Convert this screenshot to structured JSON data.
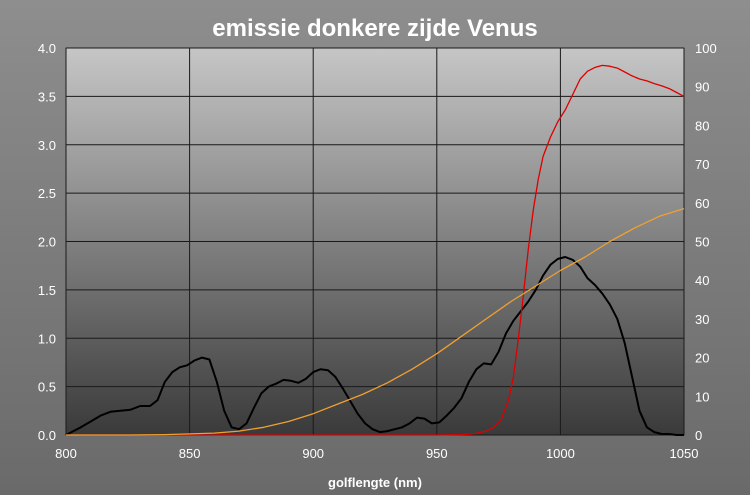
{
  "chart_data": {
    "type": "line",
    "title": "emissie donkere zijde Venus",
    "xlabel": "golflengte (nm)",
    "ylabel": "",
    "ylabel_right": "",
    "xlim": [
      800,
      1050
    ],
    "ylim": [
      0,
      4.0
    ],
    "ylim_right": [
      0,
      100
    ],
    "x_ticks": [
      "800",
      "850",
      "900",
      "950",
      "1000",
      "1050"
    ],
    "y_ticks": [
      "0.0",
      "0.5",
      "1.0",
      "1.5",
      "2.0",
      "2.5",
      "3.0",
      "3.5",
      "4.0"
    ],
    "y_ticks_right": [
      "0",
      "10",
      "20",
      "30",
      "40",
      "50",
      "60",
      "70",
      "80",
      "90",
      "100"
    ],
    "grid": true,
    "legend": "none",
    "colors": {
      "black": "#000000",
      "red": "#dd0000",
      "orange": "#f0a030"
    },
    "series": [
      {
        "axis": "left",
        "color": "#000000",
        "points": [
          [
            800,
            0.0
          ],
          [
            803,
            0.04
          ],
          [
            806,
            0.08
          ],
          [
            810,
            0.14
          ],
          [
            814,
            0.2
          ],
          [
            818,
            0.24
          ],
          [
            822,
            0.25
          ],
          [
            826,
            0.26
          ],
          [
            830,
            0.3
          ],
          [
            834,
            0.3
          ],
          [
            837,
            0.36
          ],
          [
            840,
            0.55
          ],
          [
            843,
            0.65
          ],
          [
            846,
            0.7
          ],
          [
            849,
            0.72
          ],
          [
            852,
            0.77
          ],
          [
            855,
            0.8
          ],
          [
            858,
            0.78
          ],
          [
            861,
            0.55
          ],
          [
            864,
            0.25
          ],
          [
            867,
            0.08
          ],
          [
            870,
            0.06
          ],
          [
            873,
            0.12
          ],
          [
            876,
            0.28
          ],
          [
            879,
            0.43
          ],
          [
            882,
            0.5
          ],
          [
            885,
            0.53
          ],
          [
            888,
            0.57
          ],
          [
            891,
            0.56
          ],
          [
            894,
            0.54
          ],
          [
            897,
            0.58
          ],
          [
            900,
            0.65
          ],
          [
            903,
            0.68
          ],
          [
            906,
            0.67
          ],
          [
            909,
            0.6
          ],
          [
            912,
            0.48
          ],
          [
            915,
            0.35
          ],
          [
            918,
            0.22
          ],
          [
            921,
            0.12
          ],
          [
            924,
            0.06
          ],
          [
            927,
            0.03
          ],
          [
            930,
            0.04
          ],
          [
            933,
            0.06
          ],
          [
            936,
            0.08
          ],
          [
            939,
            0.12
          ],
          [
            942,
            0.18
          ],
          [
            945,
            0.17
          ],
          [
            948,
            0.12
          ],
          [
            951,
            0.13
          ],
          [
            954,
            0.2
          ],
          [
            957,
            0.28
          ],
          [
            960,
            0.38
          ],
          [
            963,
            0.55
          ],
          [
            966,
            0.68
          ],
          [
            969,
            0.74
          ],
          [
            972,
            0.73
          ],
          [
            975,
            0.86
          ],
          [
            978,
            1.05
          ],
          [
            981,
            1.18
          ],
          [
            984,
            1.28
          ],
          [
            987,
            1.38
          ],
          [
            990,
            1.5
          ],
          [
            993,
            1.65
          ],
          [
            996,
            1.76
          ],
          [
            999,
            1.82
          ],
          [
            1002,
            1.84
          ],
          [
            1005,
            1.81
          ],
          [
            1008,
            1.74
          ],
          [
            1011,
            1.62
          ],
          [
            1014,
            1.55
          ],
          [
            1017,
            1.46
          ],
          [
            1020,
            1.35
          ],
          [
            1023,
            1.2
          ],
          [
            1026,
            0.95
          ],
          [
            1029,
            0.6
          ],
          [
            1032,
            0.25
          ],
          [
            1035,
            0.08
          ],
          [
            1038,
            0.03
          ],
          [
            1041,
            0.01
          ],
          [
            1044,
            0.01
          ],
          [
            1047,
            0.0
          ],
          [
            1050,
            0.0
          ]
        ]
      },
      {
        "axis": "right",
        "color": "#dd0000",
        "points": [
          [
            800,
            0
          ],
          [
            950,
            0
          ],
          [
            960,
            0.1
          ],
          [
            965,
            0.3
          ],
          [
            970,
            1
          ],
          [
            973,
            2
          ],
          [
            976,
            4
          ],
          [
            979,
            9
          ],
          [
            981,
            15
          ],
          [
            983,
            25
          ],
          [
            985,
            36
          ],
          [
            987,
            48
          ],
          [
            989,
            58
          ],
          [
            991,
            66
          ],
          [
            993,
            72
          ],
          [
            996,
            77
          ],
          [
            999,
            81
          ],
          [
            1002,
            84
          ],
          [
            1005,
            88
          ],
          [
            1008,
            92
          ],
          [
            1011,
            94
          ],
          [
            1014,
            95
          ],
          [
            1017,
            95.5
          ],
          [
            1020,
            95.3
          ],
          [
            1023,
            94.8
          ],
          [
            1026,
            93.8
          ],
          [
            1029,
            92.8
          ],
          [
            1032,
            92
          ],
          [
            1035,
            91.5
          ],
          [
            1038,
            90.8
          ],
          [
            1041,
            90.2
          ],
          [
            1044,
            89.5
          ],
          [
            1047,
            88.5
          ],
          [
            1050,
            87.5
          ]
        ]
      },
      {
        "axis": "right",
        "color": "#f0a030",
        "points": [
          [
            800,
            0
          ],
          [
            825,
            0
          ],
          [
            840,
            0.1
          ],
          [
            860,
            0.5
          ],
          [
            870,
            1
          ],
          [
            880,
            2
          ],
          [
            890,
            3.5
          ],
          [
            900,
            5.5
          ],
          [
            910,
            8
          ],
          [
            920,
            10.5
          ],
          [
            930,
            13.5
          ],
          [
            940,
            17
          ],
          [
            950,
            21
          ],
          [
            960,
            25.5
          ],
          [
            970,
            30
          ],
          [
            980,
            34.5
          ],
          [
            990,
            38.5
          ],
          [
            1000,
            42.5
          ],
          [
            1010,
            46
          ],
          [
            1020,
            50
          ],
          [
            1030,
            53.5
          ],
          [
            1040,
            56.5
          ],
          [
            1050,
            58.5
          ]
        ]
      }
    ]
  }
}
